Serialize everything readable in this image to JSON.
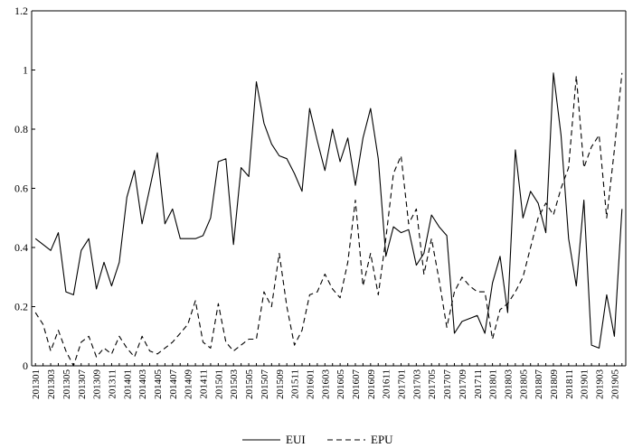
{
  "chart_data": {
    "type": "line",
    "ylim": [
      0,
      1.2
    ],
    "yticks": [
      "0",
      "0.2",
      "0.4",
      "0.6",
      "0.8",
      "1",
      "1.2"
    ],
    "yticks_values": [
      0,
      0.2,
      0.4,
      0.6,
      0.8,
      1.0,
      1.2
    ],
    "grid": false,
    "legend_position": "bottom-center",
    "x": [
      "201301",
      "201302",
      "201303",
      "201304",
      "201305",
      "201306",
      "201307",
      "201308",
      "201309",
      "201310",
      "201311",
      "201312",
      "201401",
      "201402",
      "201403",
      "201404",
      "201405",
      "201406",
      "201407",
      "201408",
      "201409",
      "201410",
      "201411",
      "201412",
      "201501",
      "201502",
      "201503",
      "201504",
      "201505",
      "201506",
      "201507",
      "201508",
      "201509",
      "201510",
      "201511",
      "201512",
      "201601",
      "201602",
      "201603",
      "201604",
      "201605",
      "201606",
      "201607",
      "201608",
      "201609",
      "201610",
      "201611",
      "201612",
      "201701",
      "201702",
      "201703",
      "201704",
      "201705",
      "201706",
      "201707",
      "201708",
      "201709",
      "201710",
      "201711",
      "201712",
      "201801",
      "201802",
      "201803",
      "201804",
      "201805",
      "201806",
      "201807",
      "201808",
      "201809",
      "201810",
      "201811",
      "201812",
      "201901",
      "201902",
      "201903",
      "201904",
      "201905",
      "201906"
    ],
    "x_tick_labels": [
      "201301",
      "201303",
      "201305",
      "201307",
      "201309",
      "201311",
      "201401",
      "201403",
      "201405",
      "201407",
      "201409",
      "201411",
      "201501",
      "201503",
      "201505",
      "201507",
      "201509",
      "201511",
      "201601",
      "201603",
      "201605",
      "201607",
      "201609",
      "201611",
      "201701",
      "201703",
      "201705",
      "201707",
      "201709",
      "201711",
      "201801",
      "201803",
      "201805",
      "201807",
      "201809",
      "201811",
      "201901",
      "201903",
      "201905"
    ],
    "series": [
      {
        "name": "EUI",
        "style": "solid",
        "values": [
          0.43,
          0.41,
          0.39,
          0.45,
          0.25,
          0.24,
          0.39,
          0.43,
          0.26,
          0.35,
          0.27,
          0.35,
          0.57,
          0.66,
          0.48,
          0.6,
          0.72,
          0.48,
          0.53,
          0.43,
          0.43,
          0.43,
          0.44,
          0.5,
          0.69,
          0.7,
          0.41,
          0.67,
          0.64,
          0.96,
          0.82,
          0.75,
          0.71,
          0.7,
          0.65,
          0.59,
          0.87,
          0.76,
          0.66,
          0.8,
          0.69,
          0.77,
          0.61,
          0.77,
          0.87,
          0.7,
          0.37,
          0.47,
          0.45,
          0.46,
          0.34,
          0.38,
          0.51,
          0.47,
          0.44,
          0.11,
          0.15,
          0.16,
          0.17,
          0.11,
          0.28,
          0.37,
          0.18,
          0.73,
          0.5,
          0.59,
          0.55,
          0.45,
          0.99,
          0.78,
          0.43,
          0.27,
          0.56,
          0.07,
          0.06,
          0.24,
          0.1,
          0.53
        ]
      },
      {
        "name": "EPU",
        "style": "dashed",
        "values": [
          0.18,
          0.14,
          0.05,
          0.12,
          0.05,
          0.0,
          0.08,
          0.1,
          0.03,
          0.06,
          0.04,
          0.1,
          0.06,
          0.03,
          0.1,
          0.05,
          0.04,
          0.06,
          0.08,
          0.11,
          0.14,
          0.22,
          0.08,
          0.06,
          0.21,
          0.08,
          0.05,
          0.07,
          0.09,
          0.09,
          0.25,
          0.2,
          0.38,
          0.2,
          0.07,
          0.12,
          0.24,
          0.25,
          0.31,
          0.26,
          0.23,
          0.35,
          0.56,
          0.27,
          0.38,
          0.24,
          0.43,
          0.65,
          0.71,
          0.48,
          0.53,
          0.31,
          0.43,
          0.29,
          0.13,
          0.25,
          0.3,
          0.27,
          0.25,
          0.25,
          0.09,
          0.19,
          0.21,
          0.25,
          0.3,
          0.4,
          0.5,
          0.55,
          0.51,
          0.6,
          0.67,
          0.98,
          0.67,
          0.74,
          0.78,
          0.5,
          0.73,
          0.99
        ]
      }
    ]
  },
  "legend": {
    "eui_label": "EUI",
    "epu_label": "EPU"
  }
}
